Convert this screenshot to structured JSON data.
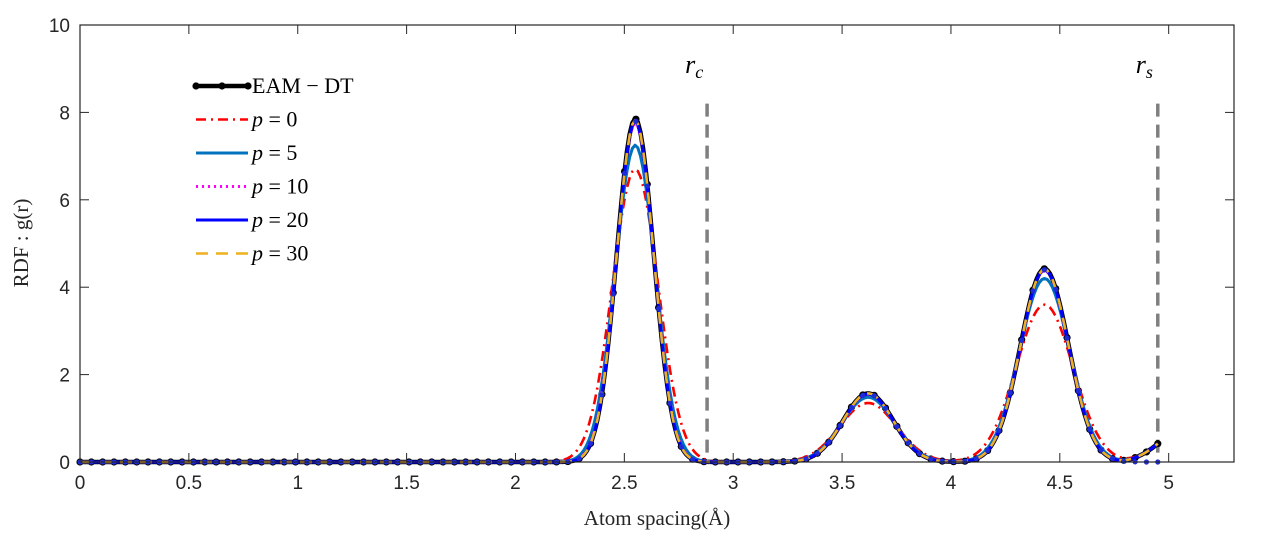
{
  "chart_data": {
    "type": "line",
    "xlabel": "Atom spacing(Å)",
    "ylabel": "RDF : g(r)",
    "xlim": [
      0,
      5.3
    ],
    "ylim": [
      0,
      10
    ],
    "xticks": [
      0,
      0.5,
      1,
      1.5,
      2,
      2.5,
      3,
      3.5,
      4,
      4.5,
      5
    ],
    "xtick_labels": [
      "0",
      "0.5",
      "1",
      "1.5",
      "2",
      "2.5",
      "3",
      "3.5",
      "4",
      "4.5",
      "5"
    ],
    "yticks": [
      0,
      2,
      4,
      6,
      8,
      10
    ],
    "ytick_labels": [
      "0",
      "2",
      "4",
      "6",
      "8",
      "10"
    ],
    "legend_position": "top-left",
    "vertical_lines": [
      {
        "x": 2.88,
        "label": "r",
        "subscript": "c",
        "color": "#7f7f7f"
      },
      {
        "x": 4.95,
        "label": "r",
        "subscript": "s",
        "color": "#7f7f7f"
      }
    ],
    "series": [
      {
        "name": "EAM − DT",
        "color": "#000000",
        "style": "solid-markers",
        "peaks": [
          {
            "center": 2.55,
            "height": 7.85,
            "sigma": 0.085
          },
          {
            "center": 3.62,
            "height": 1.57,
            "sigma": 0.115
          },
          {
            "center": 4.43,
            "height": 4.42,
            "sigma": 0.11
          }
        ]
      },
      {
        "name": "p = 0",
        "var": "p",
        "eq": "= 0",
        "color": "#ff0000",
        "style": "dashdot",
        "peaks": [
          {
            "center": 2.55,
            "height": 6.7,
            "sigma": 0.105
          },
          {
            "center": 3.62,
            "height": 1.35,
            "sigma": 0.13
          },
          {
            "center": 4.43,
            "height": 3.6,
            "sigma": 0.13
          }
        ]
      },
      {
        "name": "p = 5",
        "var": "p",
        "eq": "= 5",
        "color": "#0072bd",
        "style": "solid",
        "peaks": [
          {
            "center": 2.55,
            "height": 7.25,
            "sigma": 0.092
          },
          {
            "center": 3.62,
            "height": 1.48,
            "sigma": 0.12
          },
          {
            "center": 4.43,
            "height": 4.2,
            "sigma": 0.115
          }
        ]
      },
      {
        "name": "p = 10",
        "var": "p",
        "eq": "= 10",
        "color": "#ff00ff",
        "style": "dotted",
        "peaks": [
          {
            "center": 2.55,
            "height": 7.75,
            "sigma": 0.086
          },
          {
            "center": 3.62,
            "height": 1.55,
            "sigma": 0.115
          },
          {
            "center": 4.43,
            "height": 4.38,
            "sigma": 0.11
          }
        ]
      },
      {
        "name": "p = 20",
        "var": "p",
        "eq": "= 20",
        "color": "#0000ff",
        "style": "solid",
        "peaks": [
          {
            "center": 2.55,
            "height": 7.8,
            "sigma": 0.085
          },
          {
            "center": 3.62,
            "height": 1.56,
            "sigma": 0.115
          },
          {
            "center": 4.43,
            "height": 4.4,
            "sigma": 0.11
          }
        ]
      },
      {
        "name": "p = 30",
        "var": "p",
        "eq": "= 30",
        "color": "#edb120",
        "style": "dashed",
        "peaks": [
          {
            "center": 2.55,
            "height": 7.82,
            "sigma": 0.085
          },
          {
            "center": 3.62,
            "height": 1.57,
            "sigma": 0.115
          },
          {
            "center": 4.43,
            "height": 4.41,
            "sigma": 0.11
          }
        ]
      }
    ]
  }
}
